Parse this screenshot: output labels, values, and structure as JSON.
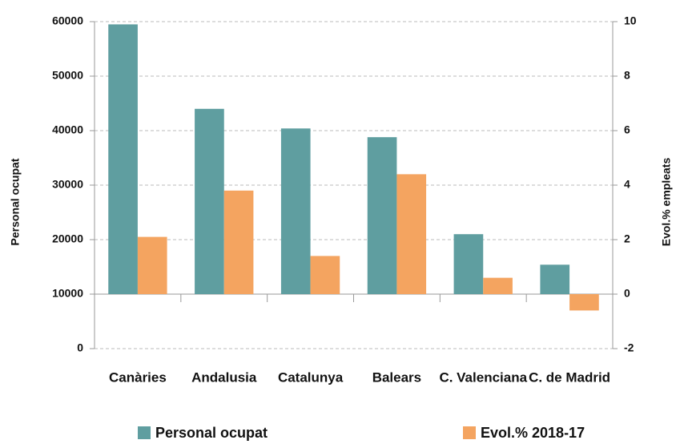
{
  "chart_data": {
    "type": "bar",
    "categories": [
      "Canàries",
      "Andalusia",
      "Catalunya",
      "Balears",
      "C. Valenciana",
      "C. de Madrid"
    ],
    "series": [
      {
        "name": "Personal ocupat",
        "color": "#5f9ea0",
        "values": [
          59500,
          44000,
          40400,
          38800,
          21000,
          15400
        ]
      },
      {
        "name": "Evol.% 2018-17",
        "color": "#f4a460",
        "axis": "y2",
        "values": [
          2.1,
          3.8,
          1.4,
          4.4,
          0.6,
          -0.6
        ]
      }
    ],
    "ylabel": "Personal ocupat",
    "y2label": "Evol.% empleats",
    "ylim": [
      0,
      60000
    ],
    "yticks": [
      0,
      10000,
      20000,
      30000,
      40000,
      50000,
      60000
    ],
    "y2lim": [
      -2,
      10
    ],
    "y2ticks": [
      -2,
      0,
      2,
      4,
      6,
      8,
      10
    ],
    "grid": true,
    "legend": "bottom"
  }
}
